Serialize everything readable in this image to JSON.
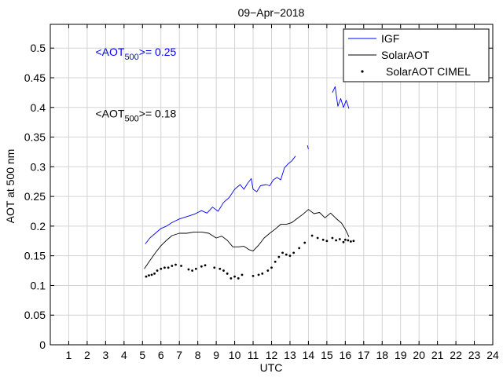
{
  "chart_data": {
    "type": "line",
    "title": "09−Apr−2018",
    "xlabel": "UTC",
    "ylabel": "AOT at 500 nm",
    "xlim": [
      0,
      24
    ],
    "ylim": [
      0,
      0.54
    ],
    "xticks": [
      1,
      2,
      3,
      4,
      5,
      6,
      7,
      8,
      9,
      10,
      11,
      12,
      13,
      14,
      15,
      16,
      17,
      18,
      19,
      20,
      21,
      22,
      23,
      24
    ],
    "yticks": [
      0,
      0.05,
      0.1,
      0.15,
      0.2,
      0.25,
      0.3,
      0.35,
      0.4,
      0.45,
      0.5
    ],
    "ytick_labels": [
      "0",
      "0.05",
      "0.1",
      "0.15",
      "0.2",
      "0.25",
      "0.3",
      "0.35",
      "0.4",
      "0.45",
      "0.5"
    ],
    "grid": true,
    "legend": "top-right",
    "annotations": [
      {
        "prefix": "<AOT",
        "sub": "500",
        "suffix": ">= 0.25",
        "color": "#0000ff",
        "x": 2.45,
        "y": 0.487
      },
      {
        "prefix": "<AOT",
        "sub": "500",
        "suffix": ">= 0.18",
        "color": "#000000",
        "x": 2.45,
        "y": 0.383
      }
    ],
    "series": [
      {
        "name": "IGF",
        "style": "line",
        "color": "#0000ff",
        "segments": [
          [
            [
              5.15,
              0.17
            ],
            [
              5.4,
              0.18
            ],
            [
              5.7,
              0.188
            ],
            [
              6.0,
              0.196
            ],
            [
              6.3,
              0.2
            ],
            [
              6.6,
              0.206
            ],
            [
              7.0,
              0.212
            ],
            [
              7.4,
              0.216
            ],
            [
              7.8,
              0.22
            ],
            [
              8.2,
              0.226
            ],
            [
              8.5,
              0.222
            ],
            [
              8.8,
              0.232
            ],
            [
              9.1,
              0.225
            ],
            [
              9.4,
              0.24
            ],
            [
              9.7,
              0.248
            ],
            [
              10.0,
              0.262
            ],
            [
              10.3,
              0.27
            ],
            [
              10.5,
              0.262
            ],
            [
              10.7,
              0.272
            ],
            [
              10.9,
              0.28
            ],
            [
              11.0,
              0.262
            ],
            [
              11.2,
              0.258
            ],
            [
              11.4,
              0.268
            ],
            [
              11.7,
              0.27
            ],
            [
              11.9,
              0.268
            ],
            [
              12.1,
              0.278
            ],
            [
              12.3,
              0.282
            ],
            [
              12.5,
              0.278
            ],
            [
              12.7,
              0.298
            ],
            [
              12.9,
              0.305
            ],
            [
              13.1,
              0.31
            ],
            [
              13.3,
              0.318
            ]
          ],
          [
            [
              13.95,
              0.336
            ],
            [
              14.0,
              0.33
            ]
          ],
          [
            [
              15.3,
              0.425
            ],
            [
              15.45,
              0.435
            ],
            [
              15.6,
              0.402
            ],
            [
              15.75,
              0.415
            ],
            [
              15.9,
              0.4
            ],
            [
              16.05,
              0.412
            ],
            [
              16.2,
              0.398
            ]
          ]
        ]
      },
      {
        "name": "SolarAOT",
        "style": "line",
        "color": "#000000",
        "segments": [
          [
            [
              5.1,
              0.128
            ],
            [
              5.4,
              0.142
            ],
            [
              5.7,
              0.155
            ],
            [
              6.0,
              0.167
            ],
            [
              6.3,
              0.176
            ],
            [
              6.6,
              0.184
            ],
            [
              7.0,
              0.188
            ],
            [
              7.4,
              0.188
            ],
            [
              7.8,
              0.19
            ],
            [
              8.2,
              0.19
            ],
            [
              8.6,
              0.188
            ],
            [
              9.0,
              0.18
            ],
            [
              9.3,
              0.183
            ],
            [
              9.6,
              0.176
            ],
            [
              9.9,
              0.165
            ],
            [
              10.2,
              0.165
            ],
            [
              10.5,
              0.166
            ],
            [
              10.8,
              0.16
            ],
            [
              11.0,
              0.158
            ],
            [
              11.3,
              0.168
            ],
            [
              11.6,
              0.18
            ],
            [
              11.9,
              0.188
            ],
            [
              12.2,
              0.195
            ],
            [
              12.5,
              0.203
            ],
            [
              12.8,
              0.203
            ],
            [
              13.1,
              0.206
            ],
            [
              13.4,
              0.213
            ],
            [
              13.7,
              0.22
            ],
            [
              14.0,
              0.228
            ],
            [
              14.3,
              0.221
            ],
            [
              14.6,
              0.223
            ],
            [
              14.9,
              0.214
            ],
            [
              15.2,
              0.222
            ],
            [
              15.5,
              0.213
            ],
            [
              15.8,
              0.205
            ],
            [
              16.0,
              0.195
            ],
            [
              16.2,
              0.182
            ]
          ]
        ]
      },
      {
        "name": "SolarAOT CIMEL",
        "style": "points",
        "color": "#000000",
        "points": [
          [
            5.2,
            0.115
          ],
          [
            5.35,
            0.117
          ],
          [
            5.5,
            0.118
          ],
          [
            5.65,
            0.12
          ],
          [
            5.8,
            0.125
          ],
          [
            6.0,
            0.128
          ],
          [
            6.2,
            0.13
          ],
          [
            6.4,
            0.13
          ],
          [
            6.6,
            0.133
          ],
          [
            6.8,
            0.135
          ],
          [
            7.1,
            0.133
          ],
          [
            7.5,
            0.127
          ],
          [
            7.7,
            0.125
          ],
          [
            7.9,
            0.128
          ],
          [
            8.2,
            0.132
          ],
          [
            8.4,
            0.134
          ],
          [
            8.9,
            0.13
          ],
          [
            9.2,
            0.128
          ],
          [
            9.4,
            0.125
          ],
          [
            9.6,
            0.12
          ],
          [
            9.8,
            0.112
          ],
          [
            10.0,
            0.115
          ],
          [
            10.2,
            0.112
          ],
          [
            10.4,
            0.118
          ],
          [
            11.0,
            0.116
          ],
          [
            11.3,
            0.118
          ],
          [
            11.5,
            0.12
          ],
          [
            11.8,
            0.125
          ],
          [
            12.0,
            0.13
          ],
          [
            12.2,
            0.14
          ],
          [
            12.4,
            0.148
          ],
          [
            12.6,
            0.155
          ],
          [
            12.8,
            0.152
          ],
          [
            13.0,
            0.15
          ],
          [
            13.2,
            0.155
          ],
          [
            13.5,
            0.163
          ],
          [
            13.8,
            0.172
          ],
          [
            14.2,
            0.184
          ],
          [
            14.5,
            0.18
          ],
          [
            14.8,
            0.177
          ],
          [
            15.0,
            0.175
          ],
          [
            15.3,
            0.18
          ],
          [
            15.5,
            0.176
          ],
          [
            15.7,
            0.178
          ],
          [
            15.9,
            0.173
          ],
          [
            16.0,
            0.177
          ],
          [
            16.15,
            0.176
          ],
          [
            16.3,
            0.174
          ],
          [
            16.45,
            0.175
          ]
        ]
      }
    ]
  }
}
